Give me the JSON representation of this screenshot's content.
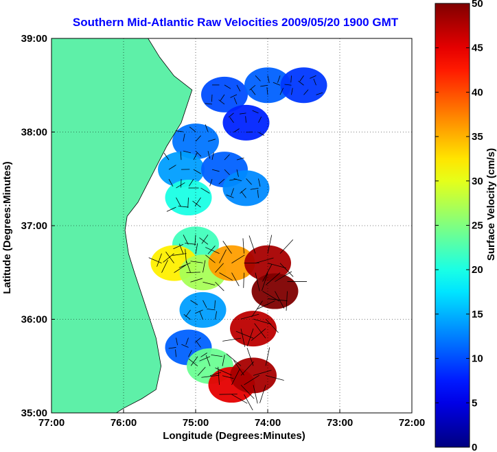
{
  "chart_data": {
    "type": "heatmap",
    "title": "Southern Mid-Atlantic Raw Velocities 2009/05/20 1900 GMT",
    "xlabel": "Longitude (Degrees:Minutes)",
    "ylabel": "Latitude (Degrees:Minutes)",
    "colorbar_label": "Surface Velocity (cm/s)",
    "xlim": [
      -77,
      -72
    ],
    "ylim": [
      35,
      39
    ],
    "x_ticks": [
      {
        "value": -77,
        "label": "77:00"
      },
      {
        "value": -76,
        "label": "76:00"
      },
      {
        "value": -75,
        "label": "75:00"
      },
      {
        "value": -74,
        "label": "74:00"
      },
      {
        "value": -73,
        "label": "73:00"
      },
      {
        "value": -72,
        "label": "72:00"
      }
    ],
    "y_ticks": [
      {
        "value": 35,
        "label": "35:00"
      },
      {
        "value": 36,
        "label": "36:00"
      },
      {
        "value": 37,
        "label": "37:00"
      },
      {
        "value": 38,
        "label": "38:00"
      },
      {
        "value": 39,
        "label": "39:00"
      }
    ],
    "colorbar_range": [
      0,
      50
    ],
    "colorbar_ticks": [
      0,
      5,
      10,
      15,
      20,
      25,
      30,
      35,
      40,
      45,
      50
    ],
    "grid": true,
    "land_color": "#5ef0a8",
    "velocity_regions": [
      {
        "lon": -74.6,
        "lat": 38.4,
        "speed": 10
      },
      {
        "lon": -74.0,
        "lat": 38.5,
        "speed": 11
      },
      {
        "lon": -73.5,
        "lat": 38.5,
        "speed": 9
      },
      {
        "lon": -74.3,
        "lat": 38.1,
        "speed": 8
      },
      {
        "lon": -75.0,
        "lat": 37.9,
        "speed": 12
      },
      {
        "lon": -75.2,
        "lat": 37.6,
        "speed": 14
      },
      {
        "lon": -74.6,
        "lat": 37.6,
        "speed": 11
      },
      {
        "lon": -75.1,
        "lat": 37.3,
        "speed": 20
      },
      {
        "lon": -74.3,
        "lat": 37.4,
        "speed": 13
      },
      {
        "lon": -75.0,
        "lat": 36.8,
        "speed": 22
      },
      {
        "lon": -75.3,
        "lat": 36.6,
        "speed": 32
      },
      {
        "lon": -74.9,
        "lat": 36.5,
        "speed": 27
      },
      {
        "lon": -74.5,
        "lat": 36.6,
        "speed": 36
      },
      {
        "lon": -74.0,
        "lat": 36.6,
        "speed": 48
      },
      {
        "lon": -73.9,
        "lat": 36.3,
        "speed": 50
      },
      {
        "lon": -74.2,
        "lat": 35.9,
        "speed": 47
      },
      {
        "lon": -74.9,
        "lat": 36.1,
        "speed": 14
      },
      {
        "lon": -75.1,
        "lat": 35.7,
        "speed": 11
      },
      {
        "lon": -74.8,
        "lat": 35.5,
        "speed": 24
      },
      {
        "lon": -74.5,
        "lat": 35.3,
        "speed": 45
      },
      {
        "lon": -74.2,
        "lat": 35.4,
        "speed": 48
      }
    ]
  }
}
